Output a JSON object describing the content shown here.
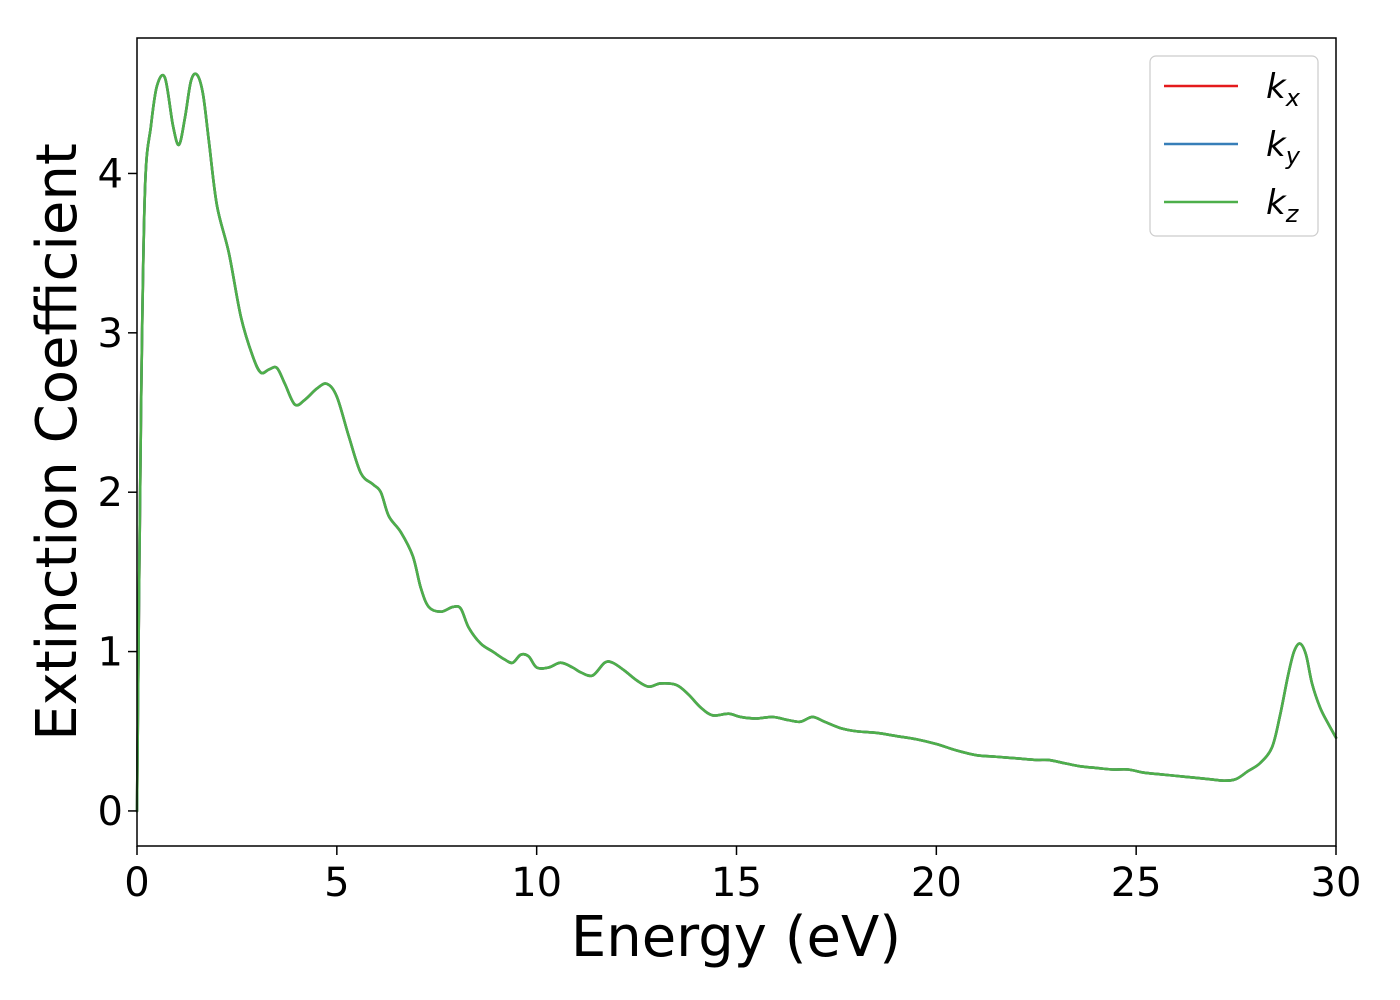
{
  "chart_data": {
    "type": "line",
    "xlabel": "Energy (eV)",
    "ylabel": "Extinction Coefficient",
    "xlim": [
      0,
      30
    ],
    "ylim": [
      -0.22,
      4.85
    ],
    "xticks": [
      0,
      5,
      10,
      15,
      20,
      25,
      30
    ],
    "yticks": [
      0,
      1,
      2,
      3,
      4
    ],
    "grid": false,
    "legend_position": "top-right",
    "series": [
      {
        "name": "k",
        "subscript": "x",
        "color": "#e41a1c",
        "x": [
          0,
          0.1,
          0.2,
          0.35,
          0.5,
          0.7,
          0.9,
          1.05,
          1.2,
          1.35,
          1.5,
          1.65,
          1.8,
          2.0,
          2.3,
          2.6,
          2.9,
          3.1,
          3.3,
          3.5,
          3.7,
          3.95,
          4.2,
          4.5,
          4.75,
          5.0,
          5.3,
          5.6,
          5.9,
          6.1,
          6.3,
          6.6,
          6.9,
          7.1,
          7.3,
          7.6,
          7.9,
          8.1,
          8.3,
          8.6,
          8.9,
          9.2,
          9.4,
          9.6,
          9.8,
          10.0,
          10.3,
          10.6,
          10.9,
          11.1,
          11.4,
          11.7,
          11.9,
          12.2,
          12.5,
          12.8,
          13.1,
          13.5,
          13.8,
          14.1,
          14.4,
          14.8,
          15.1,
          15.5,
          15.9,
          16.3,
          16.6,
          16.9,
          17.2,
          17.6,
          18.0,
          18.5,
          19.0,
          19.5,
          20.0,
          20.5,
          21.0,
          21.5,
          22.0,
          22.5,
          22.8,
          23.2,
          23.6,
          24.0,
          24.4,
          24.8,
          25.2,
          25.6,
          26.0,
          26.4,
          26.8,
          27.2,
          27.5,
          27.8,
          28.1,
          28.4,
          28.6,
          28.8,
          28.95,
          29.1,
          29.25,
          29.4,
          29.6,
          29.8,
          30.0
        ],
        "y": [
          0.0,
          2.5,
          3.9,
          4.3,
          4.55,
          4.6,
          4.3,
          4.18,
          4.35,
          4.58,
          4.62,
          4.5,
          4.2,
          3.8,
          3.5,
          3.1,
          2.85,
          2.75,
          2.77,
          2.78,
          2.68,
          2.55,
          2.58,
          2.65,
          2.68,
          2.6,
          2.35,
          2.12,
          2.05,
          2.0,
          1.85,
          1.75,
          1.6,
          1.4,
          1.28,
          1.25,
          1.28,
          1.27,
          1.15,
          1.05,
          1.0,
          0.95,
          0.93,
          0.98,
          0.97,
          0.9,
          0.9,
          0.93,
          0.9,
          0.87,
          0.85,
          0.93,
          0.93,
          0.88,
          0.82,
          0.78,
          0.8,
          0.79,
          0.73,
          0.65,
          0.6,
          0.61,
          0.59,
          0.58,
          0.59,
          0.57,
          0.56,
          0.59,
          0.56,
          0.52,
          0.5,
          0.49,
          0.47,
          0.45,
          0.42,
          0.38,
          0.35,
          0.34,
          0.33,
          0.32,
          0.32,
          0.3,
          0.28,
          0.27,
          0.26,
          0.26,
          0.24,
          0.23,
          0.22,
          0.21,
          0.2,
          0.19,
          0.2,
          0.25,
          0.3,
          0.4,
          0.6,
          0.85,
          1.0,
          1.05,
          0.98,
          0.8,
          0.65,
          0.55,
          0.46
        ]
      },
      {
        "name": "k",
        "subscript": "y",
        "color": "#377eb8",
        "x": [
          0,
          0.1,
          0.2,
          0.35,
          0.5,
          0.7,
          0.9,
          1.05,
          1.2,
          1.35,
          1.5,
          1.65,
          1.8,
          2.0,
          2.3,
          2.6,
          2.9,
          3.1,
          3.3,
          3.5,
          3.7,
          3.95,
          4.2,
          4.5,
          4.75,
          5.0,
          5.3,
          5.6,
          5.9,
          6.1,
          6.3,
          6.6,
          6.9,
          7.1,
          7.3,
          7.6,
          7.9,
          8.1,
          8.3,
          8.6,
          8.9,
          9.2,
          9.4,
          9.6,
          9.8,
          10.0,
          10.3,
          10.6,
          10.9,
          11.1,
          11.4,
          11.7,
          11.9,
          12.2,
          12.5,
          12.8,
          13.1,
          13.5,
          13.8,
          14.1,
          14.4,
          14.8,
          15.1,
          15.5,
          15.9,
          16.3,
          16.6,
          16.9,
          17.2,
          17.6,
          18.0,
          18.5,
          19.0,
          19.5,
          20.0,
          20.5,
          21.0,
          21.5,
          22.0,
          22.5,
          22.8,
          23.2,
          23.6,
          24.0,
          24.4,
          24.8,
          25.2,
          25.6,
          26.0,
          26.4,
          26.8,
          27.2,
          27.5,
          27.8,
          28.1,
          28.4,
          28.6,
          28.8,
          28.95,
          29.1,
          29.25,
          29.4,
          29.6,
          29.8,
          30.0
        ],
        "y": [
          0.0,
          2.5,
          3.9,
          4.3,
          4.55,
          4.6,
          4.3,
          4.18,
          4.35,
          4.58,
          4.62,
          4.5,
          4.2,
          3.8,
          3.5,
          3.1,
          2.85,
          2.75,
          2.77,
          2.78,
          2.68,
          2.55,
          2.58,
          2.65,
          2.68,
          2.6,
          2.35,
          2.12,
          2.05,
          2.0,
          1.85,
          1.75,
          1.6,
          1.4,
          1.28,
          1.25,
          1.28,
          1.27,
          1.15,
          1.05,
          1.0,
          0.95,
          0.93,
          0.98,
          0.97,
          0.9,
          0.9,
          0.93,
          0.9,
          0.87,
          0.85,
          0.93,
          0.93,
          0.88,
          0.82,
          0.78,
          0.8,
          0.79,
          0.73,
          0.65,
          0.6,
          0.61,
          0.59,
          0.58,
          0.59,
          0.57,
          0.56,
          0.59,
          0.56,
          0.52,
          0.5,
          0.49,
          0.47,
          0.45,
          0.42,
          0.38,
          0.35,
          0.34,
          0.33,
          0.32,
          0.32,
          0.3,
          0.28,
          0.27,
          0.26,
          0.26,
          0.24,
          0.23,
          0.22,
          0.21,
          0.2,
          0.19,
          0.2,
          0.25,
          0.3,
          0.4,
          0.6,
          0.85,
          1.0,
          1.05,
          0.98,
          0.8,
          0.65,
          0.55,
          0.46
        ]
      },
      {
        "name": "k",
        "subscript": "z",
        "color": "#4daf4a",
        "x": [
          0,
          0.1,
          0.2,
          0.35,
          0.5,
          0.7,
          0.9,
          1.05,
          1.2,
          1.35,
          1.5,
          1.65,
          1.8,
          2.0,
          2.3,
          2.6,
          2.9,
          3.1,
          3.3,
          3.5,
          3.7,
          3.95,
          4.2,
          4.5,
          4.75,
          5.0,
          5.3,
          5.6,
          5.9,
          6.1,
          6.3,
          6.6,
          6.9,
          7.1,
          7.3,
          7.6,
          7.9,
          8.1,
          8.3,
          8.6,
          8.9,
          9.2,
          9.4,
          9.6,
          9.8,
          10.0,
          10.3,
          10.6,
          10.9,
          11.1,
          11.4,
          11.7,
          11.9,
          12.2,
          12.5,
          12.8,
          13.1,
          13.5,
          13.8,
          14.1,
          14.4,
          14.8,
          15.1,
          15.5,
          15.9,
          16.3,
          16.6,
          16.9,
          17.2,
          17.6,
          18.0,
          18.5,
          19.0,
          19.5,
          20.0,
          20.5,
          21.0,
          21.5,
          22.0,
          22.5,
          22.8,
          23.2,
          23.6,
          24.0,
          24.4,
          24.8,
          25.2,
          25.6,
          26.0,
          26.4,
          26.8,
          27.2,
          27.5,
          27.8,
          28.1,
          28.4,
          28.6,
          28.8,
          28.95,
          29.1,
          29.25,
          29.4,
          29.6,
          29.8,
          30.0
        ],
        "y": [
          0.0,
          2.5,
          3.9,
          4.3,
          4.55,
          4.6,
          4.3,
          4.18,
          4.35,
          4.58,
          4.62,
          4.5,
          4.2,
          3.8,
          3.5,
          3.1,
          2.85,
          2.75,
          2.77,
          2.78,
          2.68,
          2.55,
          2.58,
          2.65,
          2.68,
          2.6,
          2.35,
          2.12,
          2.05,
          2.0,
          1.85,
          1.75,
          1.6,
          1.4,
          1.28,
          1.25,
          1.28,
          1.27,
          1.15,
          1.05,
          1.0,
          0.95,
          0.93,
          0.98,
          0.97,
          0.9,
          0.9,
          0.93,
          0.9,
          0.87,
          0.85,
          0.93,
          0.93,
          0.88,
          0.82,
          0.78,
          0.8,
          0.79,
          0.73,
          0.65,
          0.6,
          0.61,
          0.59,
          0.58,
          0.59,
          0.57,
          0.56,
          0.59,
          0.56,
          0.52,
          0.5,
          0.49,
          0.47,
          0.45,
          0.42,
          0.38,
          0.35,
          0.34,
          0.33,
          0.32,
          0.32,
          0.3,
          0.28,
          0.27,
          0.26,
          0.26,
          0.24,
          0.23,
          0.22,
          0.21,
          0.2,
          0.19,
          0.2,
          0.25,
          0.3,
          0.4,
          0.6,
          0.85,
          1.0,
          1.05,
          0.98,
          0.8,
          0.65,
          0.55,
          0.46
        ]
      }
    ]
  }
}
